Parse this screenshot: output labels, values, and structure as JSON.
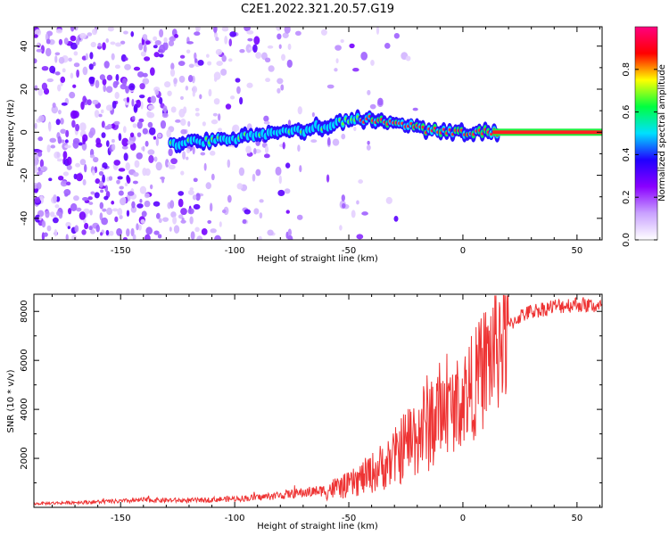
{
  "title": "C2E1.2022.321.20.57.G19",
  "chart_data": [
    {
      "type": "heatmap",
      "xlabel": "Height of straight line (km)",
      "ylabel": "Frequency (Hz)",
      "xlim": [
        -188,
        61
      ],
      "ylim": [
        -50,
        49
      ],
      "xticks": [
        -150,
        -100,
        -50,
        0,
        50
      ],
      "yticks": [
        -40,
        -20,
        0,
        20,
        40
      ],
      "colorbar": {
        "label": "Normalized spectral amplitude",
        "range": [
          0,
          1
        ],
        "ticks": [
          0.0,
          0.2,
          0.4,
          0.6,
          0.8
        ],
        "colors": [
          "#ffffff",
          "#c9a2ff",
          "#8a00ff",
          "#2000ff",
          "#00e0ff",
          "#00ff40",
          "#ffff00",
          "#ff0000",
          "#ff0080"
        ]
      },
      "ridge": {
        "x": [
          -130,
          -120,
          -110,
          -100,
          -90,
          -80,
          -70,
          -60,
          -50,
          -45,
          -40,
          -35,
          -30,
          -25,
          -20,
          -15,
          -10,
          -5,
          0,
          5,
          10,
          15,
          61
        ],
        "freq": [
          -6,
          -5,
          -4,
          -3,
          -1,
          0,
          1,
          3,
          5,
          6,
          6,
          5,
          4,
          3,
          2,
          1,
          0,
          0,
          0,
          -1,
          0,
          0,
          0
        ]
      }
    },
    {
      "type": "line",
      "xlabel": "Height of straight line (km)",
      "ylabel": "SNR (10 * v/v)",
      "xlim": [
        -188,
        61
      ],
      "ylim": [
        0,
        8700
      ],
      "xticks": [
        -150,
        -100,
        -50,
        0,
        50
      ],
      "yticks": [
        2000,
        4000,
        6000,
        8000
      ],
      "color": "#ee3333",
      "series": [
        {
          "x": [
            -188,
            -170,
            -150,
            -140,
            -120,
            -100,
            -90,
            -80,
            -70,
            -60,
            -50,
            -40,
            -30,
            -25,
            -20,
            -15,
            -10,
            -5,
            0,
            5,
            10,
            15,
            20,
            25,
            30,
            40,
            50,
            60
          ],
          "values": [
            150,
            200,
            250,
            300,
            280,
            350,
            400,
            500,
            600,
            700,
            900,
            1400,
            2000,
            2600,
            3000,
            3500,
            3800,
            4000,
            4500,
            5000,
            5800,
            6800,
            7400,
            7800,
            8000,
            8200,
            8300,
            8200
          ]
        }
      ]
    }
  ]
}
